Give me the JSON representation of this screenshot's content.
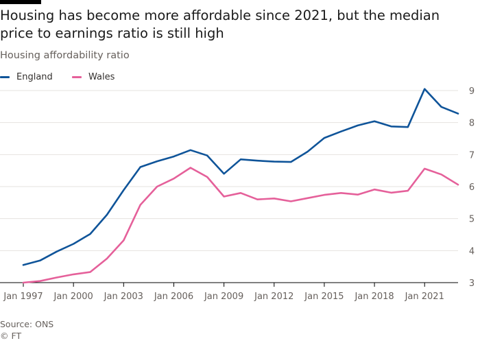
{
  "title": "Housing has become more affordable since 2021, but the median price to earnings ratio is still high",
  "subtitle": "Housing affordability ratio",
  "source": "Source: ONS",
  "credit": "© FT",
  "colors": {
    "england": "#0f5499",
    "wales": "#e5609a",
    "grid": "#e6e3df",
    "axis": "#66605c"
  },
  "chart_data": {
    "type": "line",
    "title": "Housing has become more affordable since 2021, but the median price to earnings ratio is still high",
    "ylabel": "Housing affordability ratio",
    "xlabel": "",
    "x": [
      1997,
      1998,
      1999,
      2000,
      2001,
      2002,
      2003,
      2004,
      2005,
      2006,
      2007,
      2008,
      2009,
      2010,
      2011,
      2012,
      2013,
      2014,
      2015,
      2016,
      2017,
      2018,
      2019,
      2020,
      2021,
      2022,
      2023
    ],
    "x_ticks": [
      1997,
      2000,
      2003,
      2006,
      2009,
      2012,
      2015,
      2018,
      2021
    ],
    "x_tick_labels": [
      "Jan 1997",
      "Jan 2000",
      "Jan 2003",
      "Jan 2006",
      "Jan 2009",
      "Jan 2012",
      "Jan 2015",
      "Jan 2018",
      "Jan 2021"
    ],
    "ylim": [
      3,
      9
    ],
    "y_ticks": [
      3,
      4,
      5,
      6,
      7,
      8,
      9
    ],
    "grid": true,
    "legend_position": "top-left",
    "series": [
      {
        "name": "England",
        "color": "#0f5499",
        "values": [
          3.55,
          3.69,
          3.97,
          4.21,
          4.52,
          5.12,
          5.89,
          6.61,
          6.79,
          6.94,
          7.14,
          6.97,
          6.4,
          6.85,
          6.81,
          6.78,
          6.77,
          7.09,
          7.52,
          7.72,
          7.91,
          8.04,
          7.88,
          7.86,
          9.05,
          8.49,
          8.28
        ]
      },
      {
        "name": "Wales",
        "color": "#e5609a",
        "values": [
          3.0,
          3.05,
          3.16,
          3.26,
          3.33,
          3.75,
          4.32,
          5.43,
          6.0,
          6.25,
          6.59,
          6.3,
          5.69,
          5.8,
          5.6,
          5.63,
          5.54,
          5.64,
          5.74,
          5.8,
          5.75,
          5.91,
          5.81,
          5.87,
          6.56,
          6.38,
          6.06
        ]
      }
    ]
  }
}
